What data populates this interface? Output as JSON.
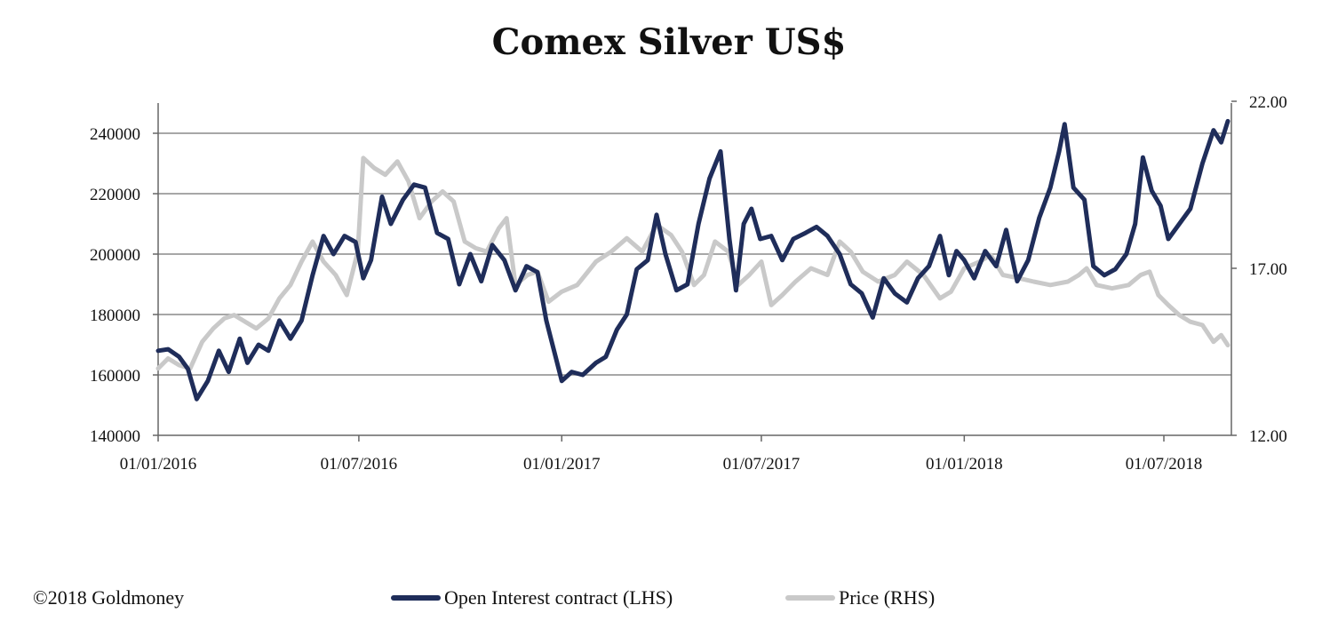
{
  "chart_data": {
    "type": "line",
    "title": "Comex Silver US$",
    "x_ticks": [
      "01/01/2016",
      "01/07/2016",
      "01/01/2017",
      "01/07/2017",
      "01/01/2018",
      "01/07/2018"
    ],
    "y_left": {
      "ticks": [
        "140000",
        "160000",
        "180000",
        "200000",
        "220000",
        "240000"
      ],
      "range": [
        140000,
        250000
      ]
    },
    "y_right": {
      "ticks": [
        "12.00",
        "17.00",
        "22.00"
      ],
      "range": [
        12,
        22
      ]
    },
    "grid": true,
    "legend_position": "bottom",
    "series": [
      {
        "name": "Open Interest contract (LHS)",
        "axis": "left",
        "color": "#1f2d5a",
        "points": [
          [
            "2016-01-01",
            168000
          ],
          [
            "2016-01-10",
            168500
          ],
          [
            "2016-01-20",
            166000
          ],
          [
            "2016-01-28",
            162000
          ],
          [
            "2016-02-05",
            152000
          ],
          [
            "2016-02-15",
            158000
          ],
          [
            "2016-02-25",
            168000
          ],
          [
            "2016-03-05",
            161000
          ],
          [
            "2016-03-15",
            172000
          ],
          [
            "2016-03-22",
            164000
          ],
          [
            "2016-04-01",
            170000
          ],
          [
            "2016-04-10",
            168000
          ],
          [
            "2016-04-20",
            178000
          ],
          [
            "2016-04-30",
            172000
          ],
          [
            "2016-05-10",
            178000
          ],
          [
            "2016-05-20",
            193000
          ],
          [
            "2016-05-30",
            206000
          ],
          [
            "2016-06-08",
            200000
          ],
          [
            "2016-06-18",
            206000
          ],
          [
            "2016-06-28",
            204000
          ],
          [
            "2016-07-05",
            192000
          ],
          [
            "2016-07-12",
            198000
          ],
          [
            "2016-07-22",
            219000
          ],
          [
            "2016-07-30",
            210000
          ],
          [
            "2016-08-10",
            218000
          ],
          [
            "2016-08-20",
            223000
          ],
          [
            "2016-08-30",
            222000
          ],
          [
            "2016-09-10",
            207000
          ],
          [
            "2016-09-20",
            205000
          ],
          [
            "2016-09-30",
            190000
          ],
          [
            "2016-10-10",
            200000
          ],
          [
            "2016-10-20",
            191000
          ],
          [
            "2016-10-30",
            203000
          ],
          [
            "2016-11-10",
            198000
          ],
          [
            "2016-11-20",
            188000
          ],
          [
            "2016-11-30",
            196000
          ],
          [
            "2016-12-10",
            194000
          ],
          [
            "2016-12-18",
            178000
          ],
          [
            "2016-12-25",
            168000
          ],
          [
            "2017-01-01",
            158000
          ],
          [
            "2017-01-10",
            161000
          ],
          [
            "2017-01-20",
            160000
          ],
          [
            "2017-02-01",
            164000
          ],
          [
            "2017-02-10",
            166000
          ],
          [
            "2017-02-20",
            175000
          ],
          [
            "2017-03-01",
            180000
          ],
          [
            "2017-03-10",
            195000
          ],
          [
            "2017-03-20",
            198000
          ],
          [
            "2017-03-28",
            213000
          ],
          [
            "2017-04-05",
            200000
          ],
          [
            "2017-04-15",
            188000
          ],
          [
            "2017-04-25",
            190000
          ],
          [
            "2017-05-05",
            210000
          ],
          [
            "2017-05-15",
            225000
          ],
          [
            "2017-05-25",
            234000
          ],
          [
            "2017-06-02",
            205000
          ],
          [
            "2017-06-08",
            188000
          ],
          [
            "2017-06-15",
            210000
          ],
          [
            "2017-06-22",
            215000
          ],
          [
            "2017-06-30",
            205000
          ],
          [
            "2017-07-10",
            206000
          ],
          [
            "2017-07-20",
            198000
          ],
          [
            "2017-07-30",
            205000
          ],
          [
            "2017-08-10",
            207000
          ],
          [
            "2017-08-20",
            209000
          ],
          [
            "2017-08-30",
            206000
          ],
          [
            "2017-09-10",
            200000
          ],
          [
            "2017-09-20",
            190000
          ],
          [
            "2017-09-30",
            187000
          ],
          [
            "2017-10-10",
            179000
          ],
          [
            "2017-10-20",
            192000
          ],
          [
            "2017-10-30",
            187000
          ],
          [
            "2017-11-10",
            184000
          ],
          [
            "2017-11-20",
            192000
          ],
          [
            "2017-11-30",
            196000
          ],
          [
            "2017-12-10",
            206000
          ],
          [
            "2017-12-18",
            193000
          ],
          [
            "2017-12-25",
            201000
          ],
          [
            "2018-01-01",
            198000
          ],
          [
            "2018-01-10",
            192000
          ],
          [
            "2018-01-20",
            201000
          ],
          [
            "2018-01-30",
            196000
          ],
          [
            "2018-02-08",
            208000
          ],
          [
            "2018-02-18",
            191000
          ],
          [
            "2018-02-28",
            198000
          ],
          [
            "2018-03-10",
            212000
          ],
          [
            "2018-03-20",
            222000
          ],
          [
            "2018-03-28",
            234000
          ],
          [
            "2018-04-02",
            243000
          ],
          [
            "2018-04-10",
            222000
          ],
          [
            "2018-04-20",
            218000
          ],
          [
            "2018-04-28",
            196000
          ],
          [
            "2018-05-08",
            193000
          ],
          [
            "2018-05-18",
            195000
          ],
          [
            "2018-05-28",
            200000
          ],
          [
            "2018-06-05",
            210000
          ],
          [
            "2018-06-12",
            232000
          ],
          [
            "2018-06-20",
            221000
          ],
          [
            "2018-06-28",
            216000
          ],
          [
            "2018-07-05",
            205000
          ],
          [
            "2018-07-15",
            210000
          ],
          [
            "2018-07-25",
            215000
          ],
          [
            "2018-08-05",
            230000
          ],
          [
            "2018-08-15",
            241000
          ],
          [
            "2018-08-22",
            237000
          ],
          [
            "2018-08-28",
            244000
          ]
        ]
      },
      {
        "name": "Price (RHS)",
        "axis": "right",
        "color": "#c9c9c9",
        "points": [
          [
            "2016-01-01",
            14.0
          ],
          [
            "2016-01-10",
            14.3
          ],
          [
            "2016-01-20",
            14.1
          ],
          [
            "2016-01-30",
            14.0
          ],
          [
            "2016-02-10",
            14.8
          ],
          [
            "2016-02-20",
            15.2
          ],
          [
            "2016-03-01",
            15.5
          ],
          [
            "2016-03-10",
            15.6
          ],
          [
            "2016-03-20",
            15.4
          ],
          [
            "2016-03-30",
            15.2
          ],
          [
            "2016-04-10",
            15.5
          ],
          [
            "2016-04-20",
            16.1
          ],
          [
            "2016-04-30",
            16.5
          ],
          [
            "2016-05-10",
            17.2
          ],
          [
            "2016-05-20",
            17.8
          ],
          [
            "2016-05-30",
            17.2
          ],
          [
            "2016-06-10",
            16.8
          ],
          [
            "2016-06-20",
            16.2
          ],
          [
            "2016-06-30",
            17.5
          ],
          [
            "2016-07-05",
            20.3
          ],
          [
            "2016-07-15",
            20.0
          ],
          [
            "2016-07-25",
            19.8
          ],
          [
            "2016-08-05",
            20.2
          ],
          [
            "2016-08-15",
            19.6
          ],
          [
            "2016-08-25",
            18.5
          ],
          [
            "2016-09-05",
            19.0
          ],
          [
            "2016-09-15",
            19.3
          ],
          [
            "2016-09-25",
            19.0
          ],
          [
            "2016-10-05",
            17.8
          ],
          [
            "2016-10-15",
            17.6
          ],
          [
            "2016-10-25",
            17.5
          ],
          [
            "2016-11-05",
            18.2
          ],
          [
            "2016-11-12",
            18.5
          ],
          [
            "2016-11-20",
            16.5
          ],
          [
            "2016-12-01",
            16.8
          ],
          [
            "2016-12-10",
            16.9
          ],
          [
            "2016-12-20",
            16.0
          ],
          [
            "2017-01-01",
            16.3
          ],
          [
            "2017-01-15",
            16.5
          ],
          [
            "2017-02-01",
            17.2
          ],
          [
            "2017-02-15",
            17.5
          ],
          [
            "2017-03-01",
            17.9
          ],
          [
            "2017-03-15",
            17.5
          ],
          [
            "2017-03-28",
            18.3
          ],
          [
            "2017-04-10",
            18.0
          ],
          [
            "2017-04-20",
            17.5
          ],
          [
            "2017-05-01",
            16.5
          ],
          [
            "2017-05-10",
            16.8
          ],
          [
            "2017-05-20",
            17.8
          ],
          [
            "2017-06-01",
            17.5
          ],
          [
            "2017-06-10",
            16.5
          ],
          [
            "2017-06-20",
            16.8
          ],
          [
            "2017-07-01",
            17.2
          ],
          [
            "2017-07-10",
            15.9
          ],
          [
            "2017-07-20",
            16.2
          ],
          [
            "2017-08-01",
            16.6
          ],
          [
            "2017-08-15",
            17.0
          ],
          [
            "2017-08-30",
            16.8
          ],
          [
            "2017-09-10",
            17.8
          ],
          [
            "2017-09-20",
            17.5
          ],
          [
            "2017-10-01",
            16.9
          ],
          [
            "2017-10-15",
            16.6
          ],
          [
            "2017-10-30",
            16.8
          ],
          [
            "2017-11-10",
            17.2
          ],
          [
            "2017-11-25",
            16.8
          ],
          [
            "2017-12-10",
            16.1
          ],
          [
            "2017-12-20",
            16.3
          ],
          [
            "2018-01-01",
            17.0
          ],
          [
            "2018-01-15",
            17.2
          ],
          [
            "2018-01-25",
            17.4
          ],
          [
            "2018-02-05",
            16.8
          ],
          [
            "2018-02-20",
            16.7
          ],
          [
            "2018-03-05",
            16.6
          ],
          [
            "2018-03-20",
            16.5
          ],
          [
            "2018-04-05",
            16.6
          ],
          [
            "2018-04-15",
            16.8
          ],
          [
            "2018-04-22",
            17.0
          ],
          [
            "2018-05-01",
            16.5
          ],
          [
            "2018-05-15",
            16.4
          ],
          [
            "2018-05-30",
            16.5
          ],
          [
            "2018-06-10",
            16.8
          ],
          [
            "2018-06-18",
            16.9
          ],
          [
            "2018-06-26",
            16.2
          ],
          [
            "2018-07-05",
            15.9
          ],
          [
            "2018-07-15",
            15.6
          ],
          [
            "2018-07-25",
            15.4
          ],
          [
            "2018-08-05",
            15.3
          ],
          [
            "2018-08-15",
            14.8
          ],
          [
            "2018-08-22",
            15.0
          ],
          [
            "2018-08-28",
            14.7
          ]
        ]
      }
    ]
  },
  "footer": {
    "credit": "©2018 Goldmoney"
  }
}
